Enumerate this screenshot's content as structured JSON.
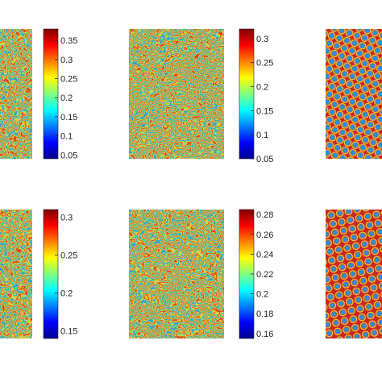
{
  "figure": {
    "panels": [
      {
        "pattern": "labyrinth",
        "visibility": "partial-left"
      },
      {
        "pattern": "labyrinth-stripes",
        "visibility": "full"
      },
      {
        "pattern": "spots",
        "visibility": "partial-right"
      },
      {
        "pattern": "labyrinth",
        "visibility": "partial-left"
      },
      {
        "pattern": "labyrinth-stripes",
        "visibility": "full"
      },
      {
        "pattern": "spots",
        "visibility": "partial-right"
      }
    ],
    "colorbars": [
      {
        "colormap": "jet",
        "range": [
          0.04,
          0.38
        ],
        "ticks": [
          "0.05",
          "0.1",
          "0.15",
          "0.2",
          "0.25",
          "0.3",
          "0.35"
        ]
      },
      {
        "colormap": "jet",
        "range": [
          0.05,
          0.32
        ],
        "ticks": [
          "0.05",
          "0.1",
          "0.15",
          "0.2",
          "0.25",
          "0.3"
        ]
      },
      {
        "colormap": "jet",
        "range": [
          0.14,
          0.31
        ],
        "ticks": [
          "0.15",
          "0.2",
          "0.25",
          "0.3"
        ]
      },
      {
        "colormap": "jet",
        "range": [
          0.155,
          0.285
        ],
        "ticks": [
          "0.16",
          "0.18",
          "0.2",
          "0.22",
          "0.24",
          "0.26",
          "0.28"
        ]
      }
    ],
    "colors": {
      "background": "#ffffff",
      "pattern_high": "#c8281e",
      "pattern_mid": "#f2d23a",
      "pattern_low": "#2f8fd6"
    }
  }
}
